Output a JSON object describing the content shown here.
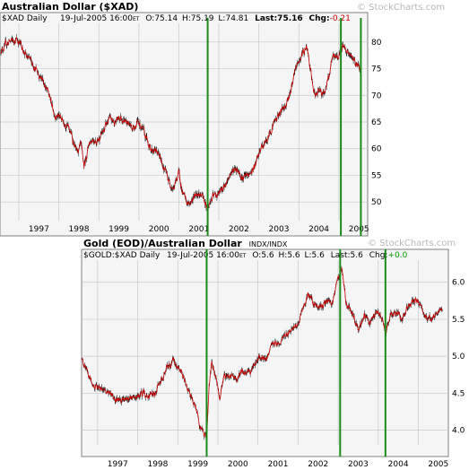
{
  "colors": {
    "price_line": "#cc0000",
    "price_bar": "#000000",
    "marker_line": "#1a8a1a",
    "panel_bg": "#f5f5f5",
    "grid": "#c8c8c8",
    "border": "#808080",
    "negative_change": "#cc0000",
    "positive_change": "#009900",
    "watermark": "#b8b8b8"
  },
  "watermark": "© StockCharts.com",
  "markers": [
    2001.72,
    2005.05,
    2005.55
  ],
  "markers_bottom": [
    1999.72,
    2003.05,
    2004.18
  ],
  "chart_data": [
    {
      "type": "line",
      "title": "Australian Dollar ($XAD)",
      "subtitle": "",
      "symbol_label": "$XAD Daily",
      "quote": {
        "date": "19-Jul-2005 16:00",
        "et": "ET",
        "open": "O:75.14",
        "high": "H:75.19",
        "low": "L:74.81",
        "last": "Last:75.16",
        "chg_label": "Chg:",
        "chg_value": "-0.21"
      },
      "x_range": [
        1996.55,
        2005.72
      ],
      "ylim": [
        46.5,
        83.5
      ],
      "y_ticks": [
        50,
        55,
        60,
        65,
        70,
        75,
        80
      ],
      "x_ticks": [
        "1997",
        "1998",
        "1999",
        "2000",
        "2001",
        "2002",
        "2003",
        "2004",
        "2005"
      ],
      "x_tick_positions": [
        1997,
        1998,
        1999,
        2000,
        2001,
        2002,
        2003,
        2004,
        2005
      ],
      "grid": true,
      "series": [
        {
          "values": [
            [
              1996.55,
              78.5
            ],
            [
              1996.75,
              80.0
            ],
            [
              1996.95,
              80.5
            ],
            [
              1997.05,
              79.5
            ],
            [
              1997.2,
              77.0
            ],
            [
              1997.35,
              76.0
            ],
            [
              1997.5,
              74.0
            ],
            [
              1997.6,
              73.0
            ],
            [
              1997.75,
              70.0
            ],
            [
              1997.9,
              66.5
            ],
            [
              1998.0,
              66.0
            ],
            [
              1998.15,
              65.0
            ],
            [
              1998.3,
              63.0
            ],
            [
              1998.45,
              59.0
            ],
            [
              1998.55,
              60.5
            ],
            [
              1998.63,
              56.5
            ],
            [
              1998.75,
              61.0
            ],
            [
              1998.85,
              62.0
            ],
            [
              1998.95,
              61.5
            ],
            [
              1999.1,
              63.0
            ],
            [
              1999.25,
              65.5
            ],
            [
              1999.4,
              65.0
            ],
            [
              1999.55,
              66.0
            ],
            [
              1999.7,
              65.0
            ],
            [
              1999.85,
              64.0
            ],
            [
              2000.0,
              65.0
            ],
            [
              2000.15,
              62.5
            ],
            [
              2000.3,
              60.0
            ],
            [
              2000.45,
              59.5
            ],
            [
              2000.6,
              57.0
            ],
            [
              2000.75,
              54.0
            ],
            [
              2000.87,
              52.5
            ],
            [
              2001.0,
              55.5
            ],
            [
              2001.1,
              51.5
            ],
            [
              2001.22,
              49.5
            ],
            [
              2001.3,
              50.0
            ],
            [
              2001.45,
              52.0
            ],
            [
              2001.58,
              51.0
            ],
            [
              2001.72,
              49.0
            ],
            [
              2001.85,
              51.0
            ],
            [
              2002.0,
              51.5
            ],
            [
              2002.15,
              53.0
            ],
            [
              2002.3,
              55.5
            ],
            [
              2002.45,
              56.5
            ],
            [
              2002.6,
              54.5
            ],
            [
              2002.75,
              55.0
            ],
            [
              2002.9,
              56.5
            ],
            [
              2003.05,
              60.0
            ],
            [
              2003.2,
              61.5
            ],
            [
              2003.35,
              64.5
            ],
            [
              2003.5,
              66.5
            ],
            [
              2003.65,
              68.0
            ],
            [
              2003.8,
              71.0
            ],
            [
              2003.95,
              75.5
            ],
            [
              2004.1,
              78.0
            ],
            [
              2004.2,
              79.0
            ],
            [
              2004.3,
              74.0
            ],
            [
              2004.4,
              69.5
            ],
            [
              2004.5,
              71.5
            ],
            [
              2004.6,
              70.0
            ],
            [
              2004.72,
              72.5
            ],
            [
              2004.85,
              77.0
            ],
            [
              2005.0,
              77.5
            ],
            [
              2005.1,
              79.5
            ],
            [
              2005.2,
              78.5
            ],
            [
              2005.3,
              77.0
            ],
            [
              2005.4,
              76.5
            ],
            [
              2005.5,
              75.5
            ],
            [
              2005.55,
              75.2
            ]
          ]
        }
      ]
    },
    {
      "type": "line",
      "title": "Gold (EOD)/Australian Dollar",
      "subtitle": "INDX/INDX",
      "symbol_label": "$GOLD:$XAD Daily",
      "quote": {
        "date": "19-Jul-2005 16:00",
        "et": "ET",
        "open": "O:5.6",
        "high": "H:5.6",
        "low": "L:5.6",
        "last": "Last:5.6",
        "chg_label": "Chg:",
        "chg_value": "+0.0"
      },
      "x_range": [
        1996.6,
        2005.75
      ],
      "ylim": [
        3.8,
        6.3
      ],
      "y_ticks": [
        "4.0",
        "4.5",
        "5.0",
        "5.5",
        "6.0"
      ],
      "y_tick_values": [
        4.0,
        4.5,
        5.0,
        5.5,
        6.0
      ],
      "x_ticks": [
        "1997",
        "1998",
        "1999",
        "2000",
        "2001",
        "2002",
        "2003",
        "2004",
        "2005"
      ],
      "x_tick_positions": [
        1997,
        1998,
        1999,
        2000,
        2001,
        2002,
        2003,
        2004,
        2005
      ],
      "grid": true,
      "series": [
        {
          "values": [
            [
              1996.6,
              4.95
            ],
            [
              1996.7,
              4.85
            ],
            [
              1996.8,
              4.7
            ],
            [
              1996.95,
              4.6
            ],
            [
              1997.1,
              4.55
            ],
            [
              1997.25,
              4.5
            ],
            [
              1997.4,
              4.45
            ],
            [
              1997.55,
              4.4
            ],
            [
              1997.7,
              4.4
            ],
            [
              1997.85,
              4.45
            ],
            [
              1998.0,
              4.45
            ],
            [
              1998.15,
              4.5
            ],
            [
              1998.3,
              4.45
            ],
            [
              1998.45,
              4.5
            ],
            [
              1998.6,
              4.7
            ],
            [
              1998.75,
              4.85
            ],
            [
              1998.9,
              4.95
            ],
            [
              1999.0,
              4.85
            ],
            [
              1999.15,
              4.7
            ],
            [
              1999.3,
              4.5
            ],
            [
              1999.45,
              4.3
            ],
            [
              1999.55,
              4.05
            ],
            [
              1999.65,
              3.95
            ],
            [
              1999.72,
              3.9
            ],
            [
              1999.78,
              4.6
            ],
            [
              1999.85,
              4.95
            ],
            [
              1999.95,
              4.7
            ],
            [
              2000.05,
              4.45
            ],
            [
              2000.15,
              4.7
            ],
            [
              2000.3,
              4.75
            ],
            [
              2000.45,
              4.7
            ],
            [
              2000.6,
              4.8
            ],
            [
              2000.75,
              4.75
            ],
            [
              2000.9,
              4.85
            ],
            [
              2001.05,
              5.0
            ],
            [
              2001.2,
              4.95
            ],
            [
              2001.35,
              5.2
            ],
            [
              2001.5,
              5.15
            ],
            [
              2001.65,
              5.3
            ],
            [
              2001.8,
              5.35
            ],
            [
              2001.95,
              5.4
            ],
            [
              2002.1,
              5.6
            ],
            [
              2002.25,
              5.85
            ],
            [
              2002.4,
              5.7
            ],
            [
              2002.55,
              5.65
            ],
            [
              2002.7,
              5.75
            ],
            [
              2002.85,
              5.7
            ],
            [
              2003.0,
              6.05
            ],
            [
              2003.1,
              6.15
            ],
            [
              2003.2,
              5.7
            ],
            [
              2003.35,
              5.6
            ],
            [
              2003.5,
              5.35
            ],
            [
              2003.65,
              5.55
            ],
            [
              2003.8,
              5.45
            ],
            [
              2003.95,
              5.6
            ],
            [
              2004.1,
              5.5
            ],
            [
              2004.2,
              5.3
            ],
            [
              2004.3,
              5.55
            ],
            [
              2004.45,
              5.6
            ],
            [
              2004.6,
              5.5
            ],
            [
              2004.75,
              5.7
            ],
            [
              2004.9,
              5.75
            ],
            [
              2005.0,
              5.75
            ],
            [
              2005.15,
              5.55
            ],
            [
              2005.3,
              5.5
            ],
            [
              2005.45,
              5.55
            ],
            [
              2005.55,
              5.65
            ],
            [
              2005.6,
              5.6
            ]
          ]
        }
      ]
    }
  ]
}
